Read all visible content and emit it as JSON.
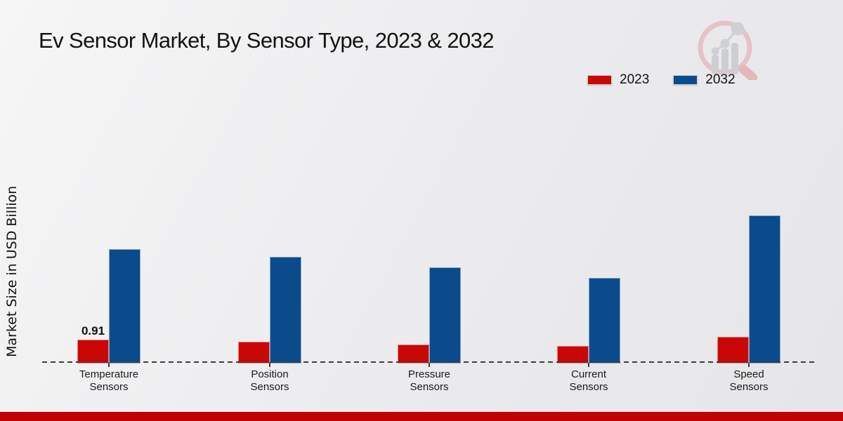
{
  "header": {
    "title": "Ev Sensor Market, By Sensor Type, 2023 & 2032"
  },
  "y_axis_label": "Market Size in USD Billion",
  "logo_icon": "magnifier-bar-chart-watermark",
  "colors": {
    "series_2023": "#c90707",
    "series_2032": "#0b4b8c",
    "footer_strip": "#c00202",
    "axis_dash": "#3c3c3c"
  },
  "chart_data": {
    "type": "bar",
    "title": "Ev Sensor Market, By Sensor Type, 2023 & 2032",
    "xlabel": "",
    "ylabel": "Market Size in USD Billion",
    "categories": [
      "Temperature Sensors",
      "Position Sensors",
      "Pressure Sensors",
      "Current Sensors",
      "Speed Sensors"
    ],
    "series": [
      {
        "name": "2023",
        "color": "#c90707",
        "values": [
          0.91,
          0.83,
          0.73,
          0.67,
          1.03
        ]
      },
      {
        "name": "2032",
        "color": "#0b4b8c",
        "values": [
          4.4,
          4.1,
          3.7,
          3.3,
          5.7
        ]
      }
    ],
    "annotations": [
      {
        "series": "2023",
        "category_index": 0,
        "text": "0.91"
      }
    ],
    "ylim": [
      0,
      6
    ],
    "grid": false,
    "y_ticks_visible": false,
    "baseline_style": "dashed",
    "legend_position": "top-right"
  }
}
